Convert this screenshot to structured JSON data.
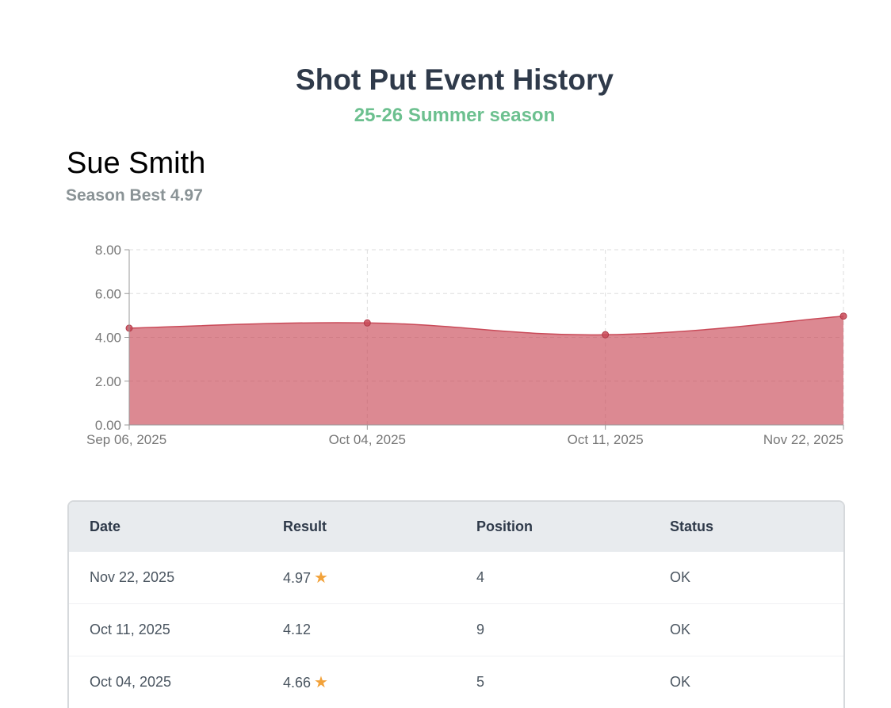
{
  "header": {
    "title": "Shot Put Event History",
    "subtitle": "25-26 Summer season"
  },
  "athlete": {
    "name": "Sue Smith",
    "season_best": "Season Best 4.97"
  },
  "chart_data": {
    "type": "area",
    "categories": [
      "Sep 06, 2025",
      "Oct 04, 2025",
      "Oct 11, 2025",
      "Nov 22, 2025"
    ],
    "values": [
      4.42,
      4.66,
      4.12,
      4.97
    ],
    "ylim": [
      0,
      8
    ],
    "yticks": [
      "0.00",
      "2.00",
      "4.00",
      "6.00",
      "8.00"
    ],
    "grid": true,
    "color": "#c94a58"
  },
  "table": {
    "columns": [
      "Date",
      "Result",
      "Position",
      "Status"
    ],
    "rows": [
      {
        "date": "Nov 22, 2025",
        "result": "4.97",
        "star": true,
        "position": "4",
        "status": "OK"
      },
      {
        "date": "Oct 11, 2025",
        "result": "4.12",
        "star": false,
        "position": "9",
        "status": "OK"
      },
      {
        "date": "Oct 04, 2025",
        "result": "4.66",
        "star": true,
        "position": "5",
        "status": "OK"
      }
    ],
    "star_icon": "star-icon",
    "star_color": "#f2a23a"
  }
}
